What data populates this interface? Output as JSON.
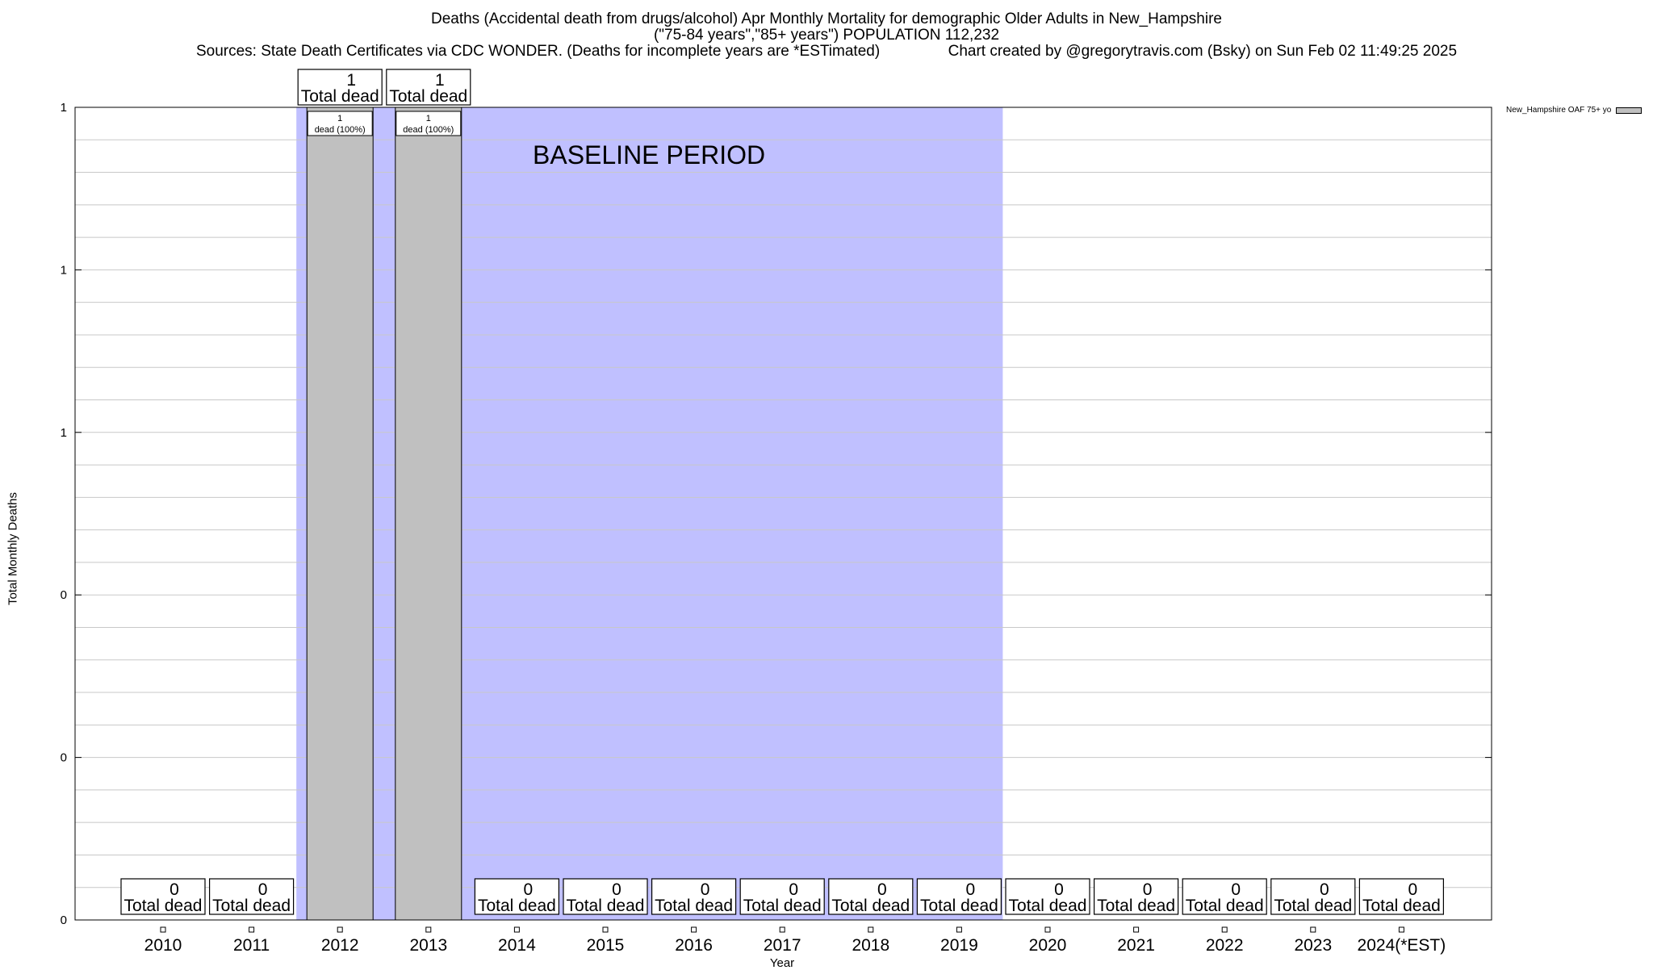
{
  "chart_data": {
    "type": "bar",
    "title": "Deaths (Accidental death from drugs/alcohol) Apr Monthly Mortality for demographic Older Adults in New_Hampshire",
    "subtitle": "(\"75-84 years\",\"85+ years\") POPULATION 112,232",
    "sources": "Sources: State Death Certificates via CDC WONDER. (Deaths for incomplete years are *ESTimated)                Chart created by @gregorytravis.com (Bsky) on Sun Feb 02 11:49:25 2025",
    "xlabel": "Year",
    "ylabel": "Total Monthly Deaths",
    "categories": [
      "2010",
      "2011",
      "2012",
      "2013",
      "2014",
      "2015",
      "2016",
      "2017",
      "2018",
      "2019",
      "2020",
      "2021",
      "2022",
      "2023",
      "2024(*EST)"
    ],
    "series": [
      {
        "name": "New_Hampshire OAF 75+ yo",
        "values": [
          0,
          0,
          1,
          1,
          0,
          0,
          0,
          0,
          0,
          0,
          0,
          0,
          0,
          0,
          0
        ]
      }
    ],
    "total_label_suffix": "Total dead",
    "bar_inner_label_suffix": "dead (100%)",
    "ylim": [
      0,
      1
    ],
    "ytick_values": [
      0,
      0.2,
      0.4,
      0.6,
      0.8,
      1.0
    ],
    "ytick_labels": [
      "0",
      "0",
      "0",
      "1",
      "1",
      "1"
    ],
    "grid": true,
    "legend_position": "top-right outside",
    "baseline_period": {
      "label": "BASELINE PERIOD",
      "start": "2012",
      "end": "2019"
    },
    "colors": {
      "bar": "#c0c0c0",
      "baseline_shade": "#c0c0ff",
      "grid": "#c8c8c8"
    }
  }
}
